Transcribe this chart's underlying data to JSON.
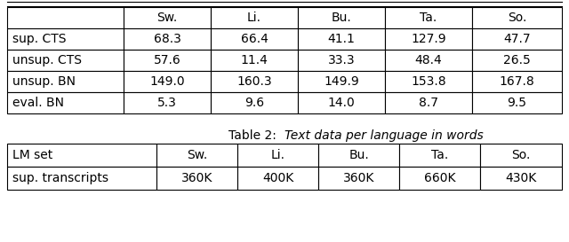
{
  "table1": {
    "col_labels": [
      "",
      "Sw.",
      "Li.",
      "Bu.",
      "Ta.",
      "So."
    ],
    "rows": [
      [
        "sup. CTS",
        "68.3",
        "66.4",
        "41.1",
        "127.9",
        "47.7"
      ],
      [
        "unsup. CTS",
        "57.6",
        "11.4",
        "33.3",
        "48.4",
        "26.5"
      ],
      [
        "unsup. BN",
        "149.0",
        "160.3",
        "149.9",
        "153.8",
        "167.8"
      ],
      [
        "eval. BN",
        "5.3",
        "9.6",
        "14.0",
        "8.7",
        "9.5"
      ]
    ]
  },
  "caption_normal": "Table 2:  ",
  "caption_italic": "Text data per language in words",
  "table2": {
    "col_labels": [
      "LM set",
      "Sw.",
      "Li.",
      "Bu.",
      "Ta.",
      "So."
    ],
    "rows": [
      [
        "sup. transcripts",
        "360K",
        "400K",
        "360K",
        "660K",
        "430K"
      ]
    ]
  },
  "bg_color": "#ffffff",
  "text_color": "#000000",
  "font_size": 10
}
